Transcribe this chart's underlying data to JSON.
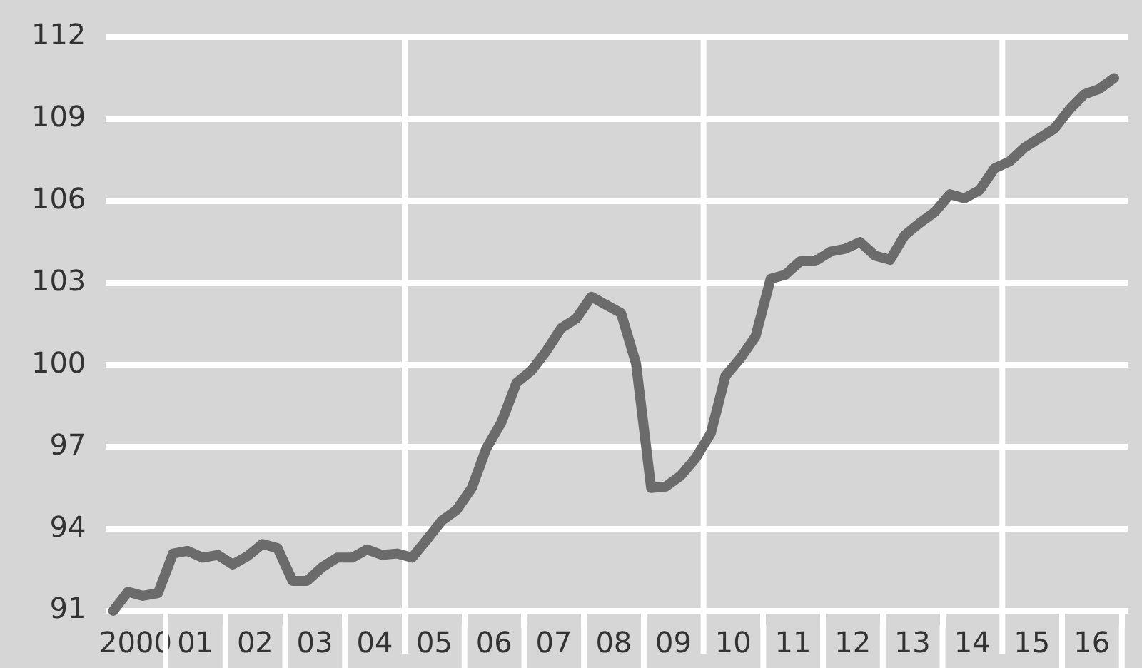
{
  "chart_data": {
    "type": "line",
    "x": [
      "2000-02-15",
      "2000-05-15",
      "2000-08-15",
      "2000-11-15",
      "2001-02-15",
      "2001-05-15",
      "2001-08-15",
      "2001-11-15",
      "2002-02-15",
      "2002-05-15",
      "2002-08-15",
      "2002-11-15",
      "2003-02-15",
      "2003-05-15",
      "2003-08-15",
      "2003-11-15",
      "2004-02-15",
      "2004-05-15",
      "2004-08-15",
      "2004-11-15",
      "2005-02-15",
      "2005-05-15",
      "2005-08-15",
      "2005-11-15",
      "2006-02-15",
      "2006-05-15",
      "2006-08-15",
      "2006-11-15",
      "2007-02-15",
      "2007-05-15",
      "2007-08-15",
      "2007-11-15",
      "2008-02-15",
      "2008-05-15",
      "2008-08-15",
      "2008-11-15",
      "2009-02-15",
      "2009-05-15",
      "2009-08-15",
      "2009-11-15",
      "2010-02-15",
      "2010-05-15",
      "2010-08-15",
      "2010-11-15",
      "2011-02-15",
      "2011-05-15",
      "2011-08-15",
      "2011-11-15",
      "2012-02-15",
      "2012-05-15",
      "2012-08-15",
      "2012-11-15",
      "2013-02-15",
      "2013-05-15",
      "2013-08-15",
      "2013-11-15",
      "2014-02-15",
      "2014-05-15",
      "2014-08-15",
      "2014-11-15",
      "2015-02-15",
      "2015-05-15",
      "2015-08-15",
      "2015-11-15",
      "2016-02-15",
      "2016-05-15",
      "2016-08-15",
      "2016-11-15"
    ],
    "series": [
      {
        "color": "#6b6b6b",
        "values": [
          91.0,
          91.7,
          91.55,
          91.65,
          93.1,
          93.2,
          92.95,
          93.05,
          92.7,
          93.0,
          93.45,
          93.3,
          92.1,
          92.1,
          92.6,
          92.95,
          92.95,
          93.25,
          93.05,
          93.1,
          92.95,
          93.6,
          94.3,
          94.7,
          95.5,
          96.95,
          97.9,
          99.35,
          99.8,
          100.5,
          101.35,
          101.7,
          102.5,
          102.2,
          101.9,
          100.05,
          95.5,
          95.55,
          95.95,
          96.6,
          97.5,
          99.6,
          100.25,
          101.05,
          103.15,
          103.3,
          103.8,
          103.8,
          104.15,
          104.25,
          104.5,
          104.0,
          103.85,
          104.75,
          105.2,
          105.6,
          106.25,
          106.1,
          106.4,
          107.2,
          107.45,
          107.95,
          108.3,
          108.65,
          109.35,
          109.9,
          110.1,
          110.5
        ]
      }
    ],
    "xlim": [
      "2000-01-01",
      "2017-02-06"
    ],
    "xticks": [
      {
        "value": "2000-07-01",
        "label": "2000"
      },
      {
        "value": "2001-01-01",
        "label": null
      },
      {
        "value": "2001-07-01",
        "label": "01"
      },
      {
        "value": "2002-01-01",
        "label": null
      },
      {
        "value": "2002-07-01",
        "label": "02"
      },
      {
        "value": "2003-01-01",
        "label": null
      },
      {
        "value": "2003-07-01",
        "label": "03"
      },
      {
        "value": "2004-01-01",
        "label": null
      },
      {
        "value": "2004-07-01",
        "label": "04"
      },
      {
        "value": "2005-07-01",
        "label": "05"
      },
      {
        "value": "2006-01-01",
        "label": null
      },
      {
        "value": "2006-07-01",
        "label": "06"
      },
      {
        "value": "2007-01-01",
        "label": null
      },
      {
        "value": "2007-07-01",
        "label": "07"
      },
      {
        "value": "2008-01-01",
        "label": null
      },
      {
        "value": "2008-07-01",
        "label": "08"
      },
      {
        "value": "2009-01-01",
        "label": null
      },
      {
        "value": "2009-07-01",
        "label": "09"
      },
      {
        "value": "2010-07-01",
        "label": "10"
      },
      {
        "value": "2011-01-01",
        "label": null
      },
      {
        "value": "2011-07-01",
        "label": "11"
      },
      {
        "value": "2012-01-01",
        "label": null
      },
      {
        "value": "2012-07-01",
        "label": "12"
      },
      {
        "value": "2013-01-01",
        "label": null
      },
      {
        "value": "2013-07-01",
        "label": "13"
      },
      {
        "value": "2014-01-01",
        "label": null
      },
      {
        "value": "2014-07-01",
        "label": "14"
      },
      {
        "value": "2015-07-01",
        "label": "15"
      },
      {
        "value": "2016-01-01",
        "label": null
      },
      {
        "value": "2016-07-01",
        "label": "16"
      },
      {
        "value": "2017-01-01",
        "label": null
      }
    ],
    "ylim": [
      91,
      112
    ],
    "yticks": [
      91,
      94,
      97,
      100,
      103,
      106,
      109,
      112
    ],
    "grid": "y",
    "ref_lines": [
      {
        "axis": "x",
        "value": "2005-01-01",
        "color": "#ffffff"
      },
      {
        "axis": "x",
        "value": "2010-01-01",
        "color": "#ffffff"
      },
      {
        "axis": "x",
        "value": "2015-01-01",
        "color": "#ffffff"
      }
    ],
    "marker": "none",
    "line_style": "solid",
    "legend": false
  }
}
